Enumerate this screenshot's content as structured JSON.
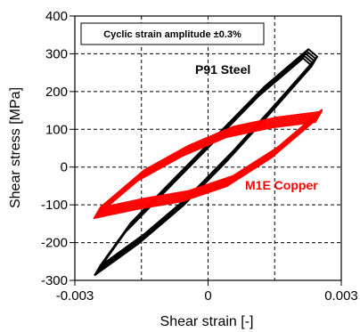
{
  "chart_data": {
    "type": "line",
    "title": "",
    "annotation_box": "Cyclic strain amplitude ±0.3%",
    "xlabel": "Shear strain [-]",
    "ylabel": "Shear stress [MPa]",
    "xlim": [
      -0.003,
      0.003
    ],
    "ylim": [
      -300,
      400
    ],
    "x_ticks": [
      -0.003,
      0,
      0.003
    ],
    "x_tick_labels": [
      "-0.003",
      "0",
      "0.003"
    ],
    "y_ticks": [
      -300,
      -200,
      -100,
      0,
      100,
      200,
      300,
      400
    ],
    "y_tick_labels": [
      "-300",
      "-200",
      "-100",
      "0",
      "100",
      "200",
      "300",
      "400"
    ],
    "grid": "dashed",
    "series": [
      {
        "name": "P91 Steel",
        "color": "#000000",
        "loop": {
          "x": [
            -0.0025,
            -0.0015,
            -0.0005,
            0.0005,
            0.0015,
            0.0024,
            0.0022,
            0.0012,
            0.0002,
            -0.0008,
            -0.0018,
            -0.0025
          ],
          "y": [
            -275,
            -190,
            -90,
            30,
            160,
            280,
            300,
            200,
            80,
            -40,
            -160,
            -275
          ]
        }
      },
      {
        "name": "M1E Copper",
        "color": "#ff0000",
        "loop": {
          "x": [
            -0.0025,
            -0.0015,
            -0.0005,
            0.0005,
            0.0015,
            0.0025,
            0.0025,
            0.0015,
            0.0005,
            -0.0005,
            -0.0015,
            -0.0025
          ],
          "y": [
            -120,
            -95,
            -75,
            -35,
            40,
            140,
            135,
            120,
            95,
            45,
            -20,
            -120
          ]
        }
      }
    ]
  }
}
